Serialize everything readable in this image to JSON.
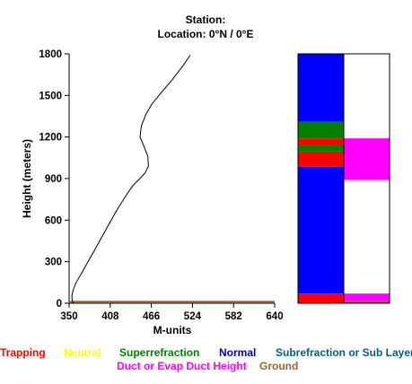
{
  "chart_data": {
    "type": "line",
    "title_line1": "Station:",
    "title_line2": "Location:   0°N /   0°E",
    "xlabel": "M-units",
    "ylabel": "Height (meters)",
    "xlim": [
      350,
      640
    ],
    "ylim": [
      0,
      1800
    ],
    "xticks": [
      "350",
      "408",
      "466",
      "524",
      "582",
      "640"
    ],
    "yticks": [
      "0",
      "300",
      "600",
      "900",
      "1200",
      "1500",
      "1800"
    ],
    "profile": {
      "x": [
        356,
        354,
        354,
        356,
        360,
        368,
        380,
        392,
        404,
        416,
        428,
        440,
        448,
        457,
        462,
        461,
        455,
        450,
        452,
        458,
        467,
        480,
        495,
        510,
        521
      ],
      "y": [
        0,
        30,
        60,
        100,
        150,
        220,
        330,
        440,
        550,
        660,
        760,
        850,
        890,
        940,
        990,
        1060,
        1140,
        1200,
        1280,
        1360,
        1440,
        1520,
        1610,
        1710,
        1790
      ]
    },
    "ground_line": {
      "y": 8,
      "color": "#996633"
    },
    "trap_line": {
      "y": 14,
      "color": "#ff0000"
    },
    "refraction_column": [
      {
        "class": "Trapping",
        "from": 0,
        "to": 70,
        "color": "#ff0000"
      },
      {
        "class": "Normal",
        "from": 70,
        "to": 985,
        "color": "#0000ff"
      },
      {
        "class": "Trapping",
        "from": 985,
        "to": 1095,
        "color": "#ff0000"
      },
      {
        "class": "Superrefraction",
        "from": 1095,
        "to": 1140,
        "color": "#008000"
      },
      {
        "class": "Trapping",
        "from": 1140,
        "to": 1190,
        "color": "#ff0000"
      },
      {
        "class": "Superrefraction",
        "from": 1190,
        "to": 1310,
        "color": "#008000"
      },
      {
        "class": "Normal",
        "from": 1310,
        "to": 1800,
        "color": "#0000ff"
      }
    ],
    "duct_column": [
      {
        "from": 0,
        "to": 20,
        "color": "#996633"
      },
      {
        "from": 20,
        "to": 70,
        "color": "#ff00ff"
      },
      {
        "from": 890,
        "to": 1190,
        "color": "#ff00ff"
      }
    ],
    "legend": [
      {
        "label": "Trapping",
        "color": "#ff0000"
      },
      {
        "label": "Neutral",
        "color": "#ffff00"
      },
      {
        "label": "Superrefraction",
        "color": "#008000"
      },
      {
        "label": "Normal",
        "color": "#0000c8"
      },
      {
        "label": "Subrefraction or Sub Layer",
        "color": "#006080"
      },
      {
        "label": "Duct or Evap Duct Height",
        "color": "#ff00ff"
      },
      {
        "label": "Ground",
        "color": "#996633"
      }
    ]
  }
}
